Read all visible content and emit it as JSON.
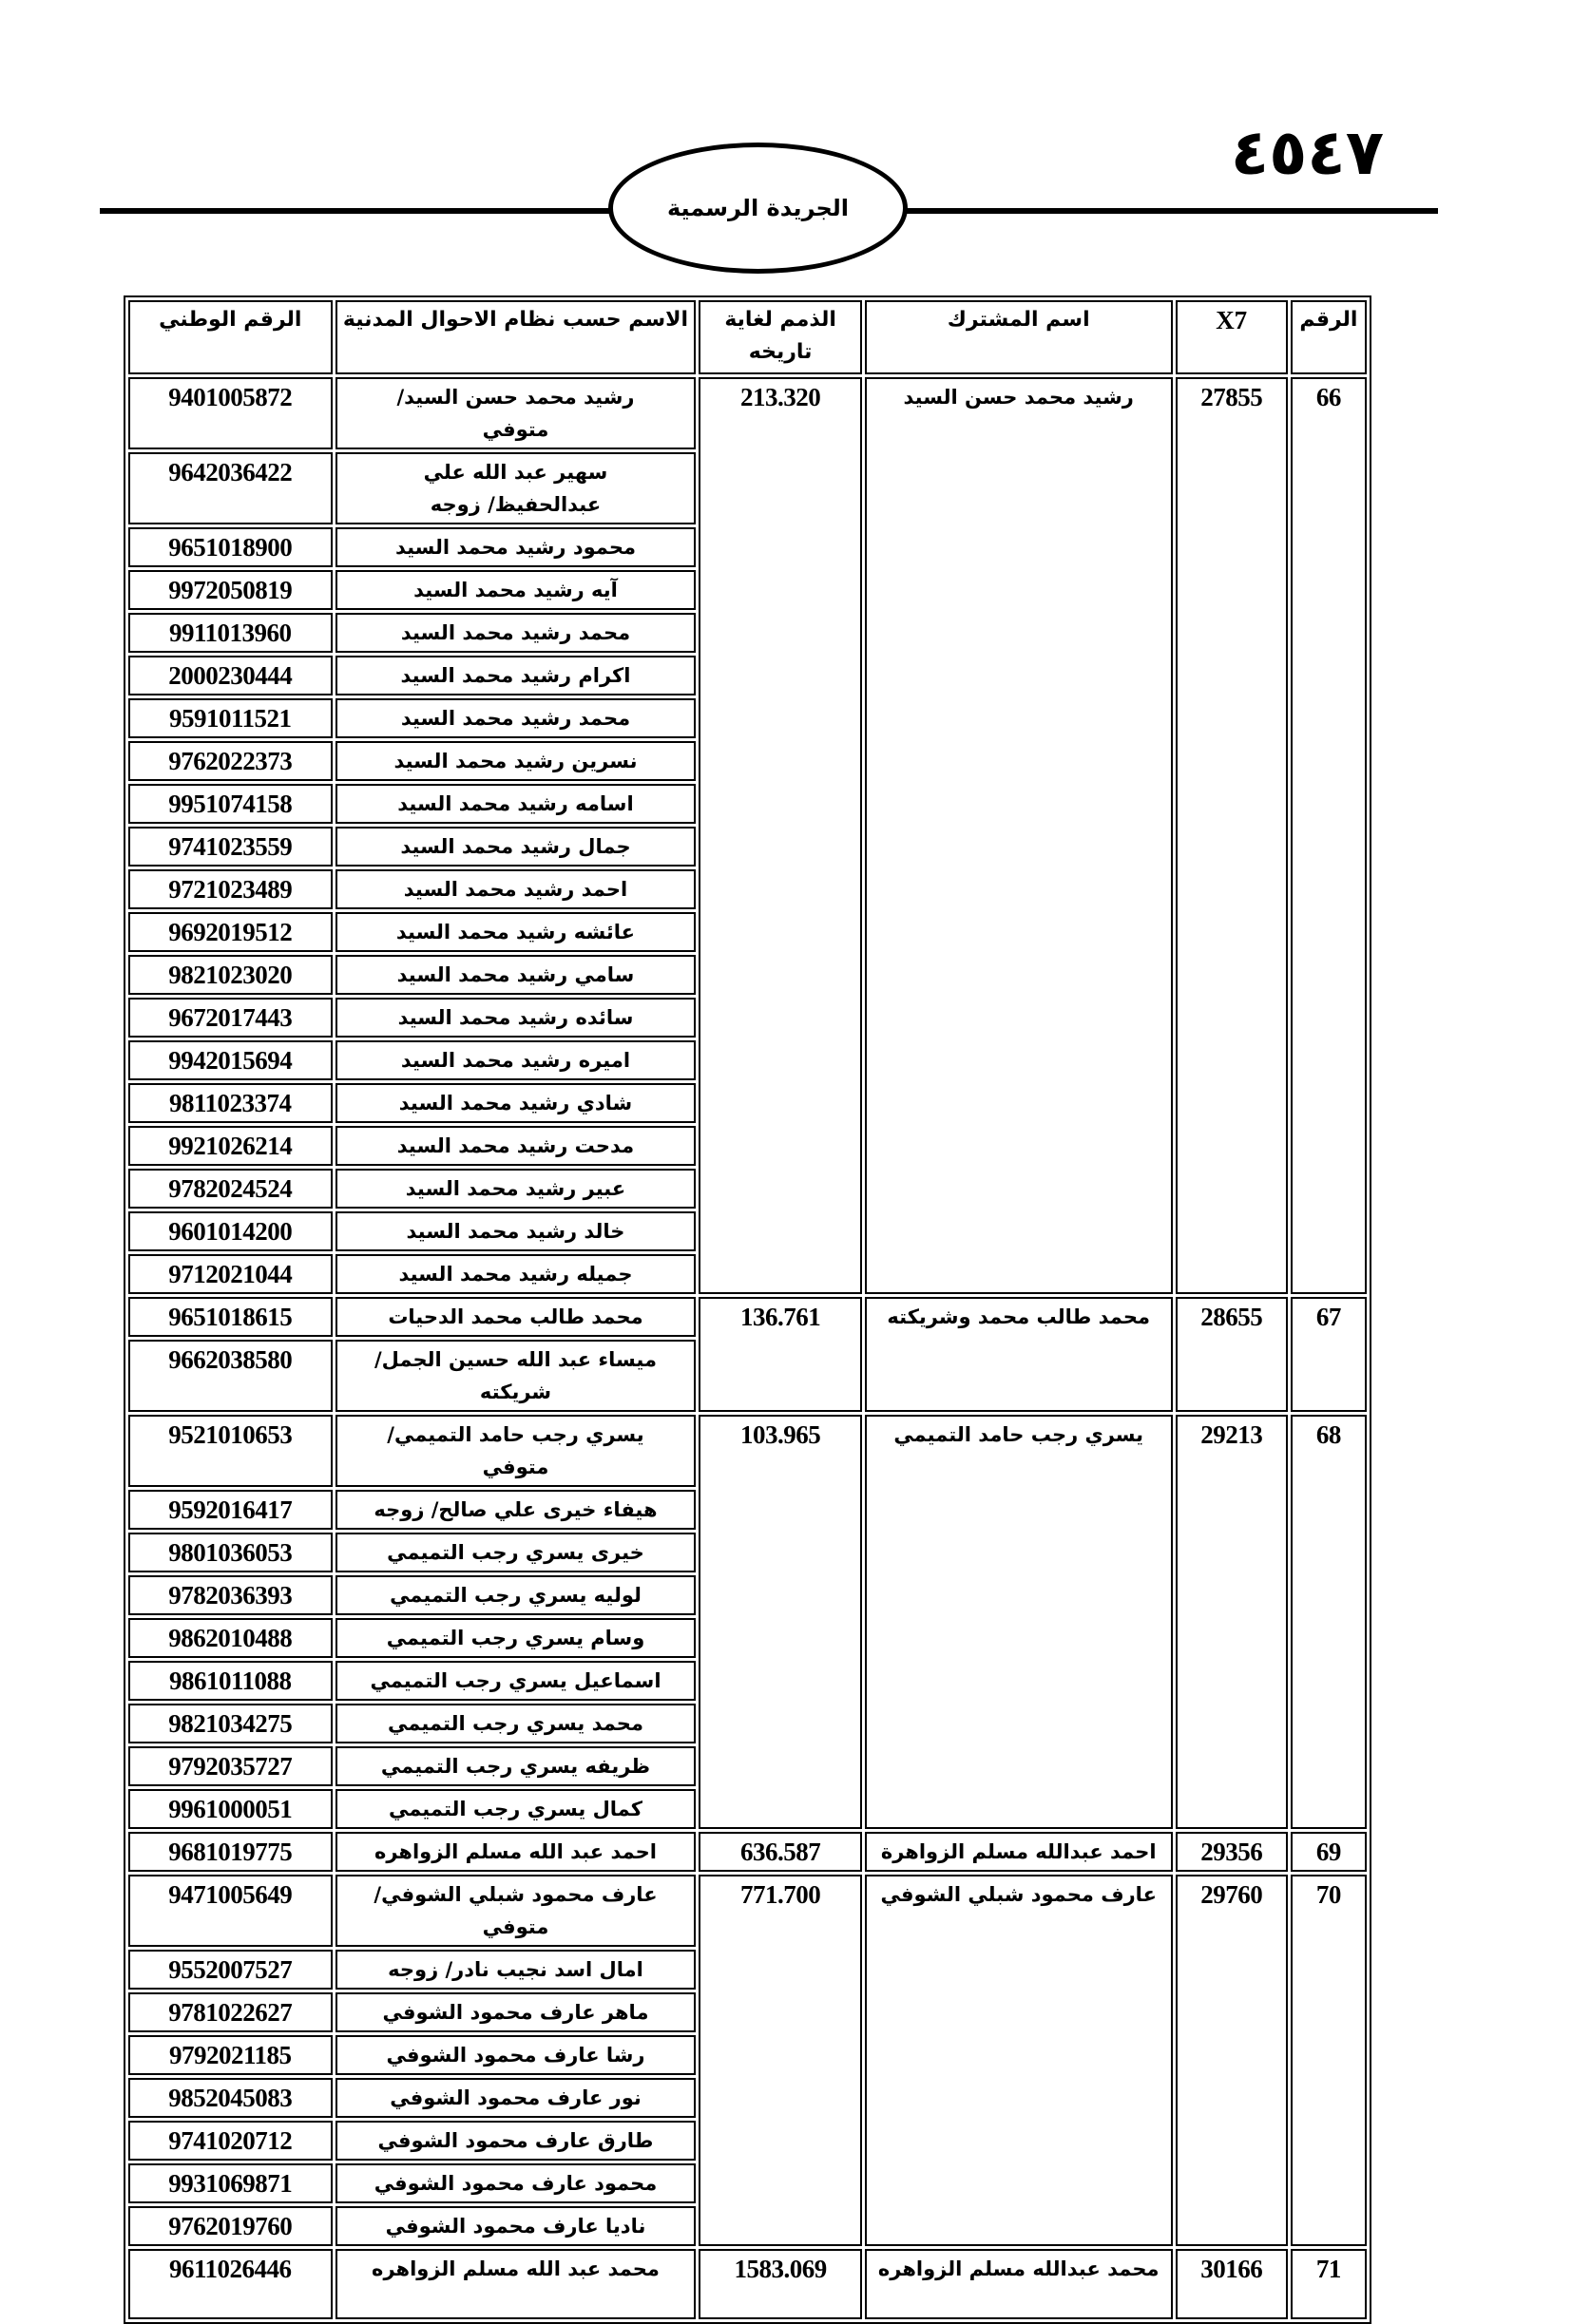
{
  "header": {
    "page_number": "٤٥٤٧",
    "gazette_title": "الجريدة الرسمية"
  },
  "table": {
    "columns": {
      "number": "الرقم",
      "x7": "X7",
      "subscriber": "اسم المشترك",
      "dues": "الذمم لغاية تاريخه",
      "civil_name": "الاسم حسب نظام الاحوال المدنية",
      "national_id": "الرقم الوطني"
    },
    "groups": [
      {
        "number": "66",
        "x7": "27855",
        "subscriber": "رشيد محمد حسن السيد",
        "dues": "213.320",
        "members": [
          {
            "name": "رشيد محمد حسن السيد/ متوفي",
            "id": "9401005872"
          },
          {
            "name": "سهير عبد الله علي عبدالحفيظ/ زوجه",
            "id": "9642036422"
          },
          {
            "name": "محمود رشيد محمد السيد",
            "id": "9651018900"
          },
          {
            "name": "آيه رشيد محمد السيد",
            "id": "9972050819"
          },
          {
            "name": "محمد رشيد محمد السيد",
            "id": "9911013960"
          },
          {
            "name": "اكرام رشيد محمد السيد",
            "id": "2000230444"
          },
          {
            "name": "محمد رشيد محمد السيد",
            "id": "9591011521"
          },
          {
            "name": "نسرين رشيد محمد السيد",
            "id": "9762022373"
          },
          {
            "name": "اسامه رشيد محمد السيد",
            "id": "9951074158"
          },
          {
            "name": "جمال رشيد محمد السيد",
            "id": "9741023559"
          },
          {
            "name": "احمد رشيد محمد السيد",
            "id": "9721023489"
          },
          {
            "name": "عائشه رشيد محمد السيد",
            "id": "9692019512"
          },
          {
            "name": "سامي رشيد محمد السيد",
            "id": "9821023020"
          },
          {
            "name": "سائده رشيد محمد السيد",
            "id": "9672017443"
          },
          {
            "name": "اميره رشيد محمد السيد",
            "id": "9942015694"
          },
          {
            "name": "شادي رشيد محمد السيد",
            "id": "9811023374"
          },
          {
            "name": "مدحت رشيد محمد السيد",
            "id": "9921026214"
          },
          {
            "name": "عبير رشيد محمد السيد",
            "id": "9782024524"
          },
          {
            "name": "خالد رشيد محمد السيد",
            "id": "9601014200"
          },
          {
            "name": "جميله رشيد محمد السيد",
            "id": "9712021044"
          }
        ]
      },
      {
        "number": "67",
        "x7": "28655",
        "subscriber": "محمد طالب محمد وشريكته",
        "dues": "136.761",
        "members": [
          {
            "name": "محمد طالب محمد الدحيات",
            "id": "9651018615"
          },
          {
            "name": "ميساء عبد الله حسين الجمل/ شريكته",
            "id": "9662038580"
          }
        ]
      },
      {
        "number": "68",
        "x7": "29213",
        "subscriber": "يسري رجب حامد التميمي",
        "dues": "103.965",
        "members": [
          {
            "name": "يسري رجب حامد التميمي/ متوفي",
            "id": "9521010653"
          },
          {
            "name": "هيفاء خيرى علي صالح/ زوجه",
            "id": "9592016417"
          },
          {
            "name": "خيرى يسري رجب التميمي",
            "id": "9801036053"
          },
          {
            "name": "لوليه يسري رجب التميمي",
            "id": "9782036393"
          },
          {
            "name": "وسام يسري رجب التميمي",
            "id": "9862010488"
          },
          {
            "name": "اسماعيل يسري رجب التميمي",
            "id": "9861011088"
          },
          {
            "name": "محمد يسري رجب التميمي",
            "id": "9821034275"
          },
          {
            "name": "ظريفه يسري رجب التميمي",
            "id": "9792035727"
          },
          {
            "name": "كمال يسري رجب التميمي",
            "id": "9961000051"
          }
        ]
      },
      {
        "number": "69",
        "x7": "29356",
        "subscriber": "احمد عبدالله مسلم الزواهرة",
        "dues": "636.587",
        "members": [
          {
            "name": "احمد عبد الله مسلم الزواهره",
            "id": "9681019775"
          }
        ]
      },
      {
        "number": "70",
        "x7": "29760",
        "subscriber": "عارف محمود شبلي الشوفي",
        "dues": "771.700",
        "members": [
          {
            "name": "عارف محمود شبلي الشوفي/ متوفي",
            "id": "9471005649"
          },
          {
            "name": "امال اسد نجيب نادر/ زوجه",
            "id": "9552007527"
          },
          {
            "name": "ماهر عارف محمود الشوفي",
            "id": "9781022627"
          },
          {
            "name": "رشا عارف محمود الشوفي",
            "id": "9792021185"
          },
          {
            "name": "نور عارف محمود الشوفي",
            "id": "9852045083"
          },
          {
            "name": "طارق عارف محمود الشوفي",
            "id": "9741020712"
          },
          {
            "name": "محمود عارف محمود الشوفي",
            "id": "9931069871"
          },
          {
            "name": "ناديا عارف محمود الشوفي",
            "id": "9762019760"
          }
        ]
      },
      {
        "number": "71",
        "x7": "30166",
        "subscriber": "محمد عبدالله مسلم الزواهره",
        "dues": "1583.069",
        "members": [
          {
            "name": "محمد عبد الله مسلم الزواهره",
            "id": "9611026446"
          }
        ]
      }
    ]
  }
}
